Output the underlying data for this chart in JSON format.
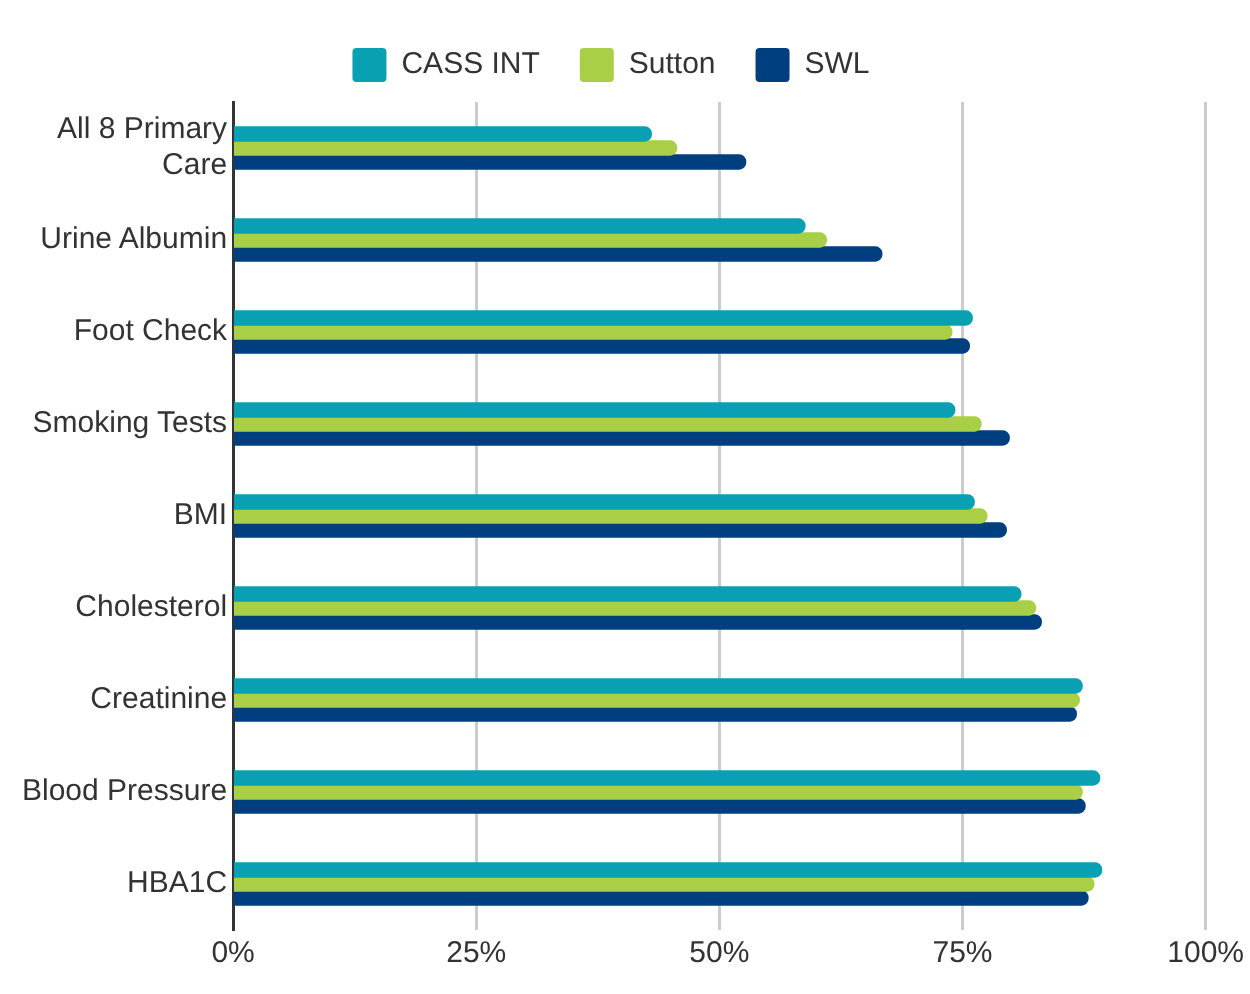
{
  "chart_data": {
    "type": "bar",
    "orientation": "horizontal",
    "categories": [
      "All 8 Primary Care",
      "Urine Albumin",
      "Foot Check",
      "Smoking Tests",
      "BMI",
      "Cholesterol",
      "Creatinine",
      "Blood Pressure",
      "HBA1C"
    ],
    "series": [
      {
        "name": "CASS INT",
        "color": "#0aa0b4",
        "values": [
          43,
          58.8,
          76,
          74.2,
          76.2,
          81,
          87.3,
          89.1,
          89.3
        ]
      },
      {
        "name": "Sutton",
        "color": "#a8cf45",
        "values": [
          45.6,
          61,
          73.9,
          76.9,
          77.5,
          82.5,
          87,
          87.3,
          88.5
        ]
      },
      {
        "name": "SWL",
        "color": "#003f7f",
        "values": [
          52.7,
          66.7,
          75.7,
          79.8,
          79.5,
          83.1,
          86.7,
          87.6,
          87.9
        ]
      }
    ],
    "xlim": [
      0,
      100
    ],
    "xticks": [
      {
        "value": 0,
        "label": "0%"
      },
      {
        "value": 25,
        "label": "25%"
      },
      {
        "value": 50,
        "label": "50%"
      },
      {
        "value": 75,
        "label": "75%"
      },
      {
        "value": 100,
        "label": "100%"
      }
    ],
    "grid": "x",
    "legend": "top"
  }
}
